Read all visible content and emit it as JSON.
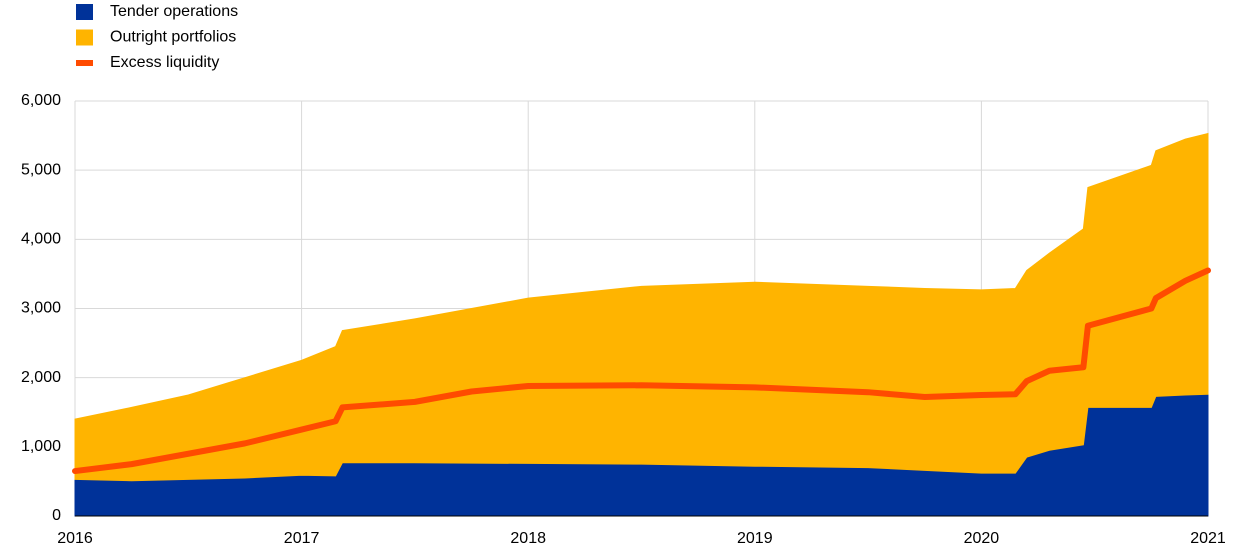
{
  "chart_data": {
    "type": "area",
    "stacked": true,
    "grid": true,
    "x": [
      2016,
      2016.25,
      2016.5,
      2016.75,
      2017,
      2017.15,
      2017.18,
      2017.5,
      2017.75,
      2018,
      2018.5,
      2019,
      2019.5,
      2019.75,
      2020,
      2020.15,
      2020.2,
      2020.3,
      2020.45,
      2020.47,
      2020.75,
      2020.77,
      2020.9,
      2021
    ],
    "xlim": [
      2016,
      2021
    ],
    "xticks": [
      2016,
      2017,
      2018,
      2019,
      2020,
      2021
    ],
    "ylim": [
      0,
      6000
    ],
    "yticks": [
      0,
      {
        "value": 1000,
        "label": "1,000"
      },
      {
        "value": 2000,
        "label": "2,000"
      },
      {
        "value": 3000,
        "label": "3,000"
      },
      {
        "value": 4000,
        "label": "4,000"
      },
      {
        "value": 5000,
        "label": "5,000"
      },
      {
        "value": 6000,
        "label": "6,000"
      }
    ],
    "series": [
      {
        "name": "Tender operations",
        "color": "#003299",
        "type": "area",
        "values": [
          530,
          510,
          530,
          550,
          590,
          580,
          770,
          770,
          765,
          760,
          750,
          720,
          700,
          660,
          620,
          620,
          850,
          950,
          1030,
          1570,
          1570,
          1730,
          1750,
          1760
        ]
      },
      {
        "name": "Outright portfolios",
        "color": "#ffb400",
        "type": "area",
        "values": [
          870,
          1060,
          1220,
          1450,
          1660,
          1870,
          1910,
          2080,
          2235,
          2390,
          2570,
          2660,
          2620,
          2630,
          2650,
          2670,
          2700,
          2850,
          3120,
          3180,
          3500,
          3550,
          3700,
          3770
        ]
      },
      {
        "name": "Excess liquidity",
        "color": "#ff4b00",
        "type": "line",
        "values": [
          650,
          750,
          900,
          1050,
          1250,
          1370,
          1570,
          1650,
          1800,
          1880,
          1890,
          1860,
          1790,
          1720,
          1750,
          1760,
          1950,
          2100,
          2150,
          2750,
          3000,
          3150,
          3400,
          3550
        ]
      }
    ]
  }
}
